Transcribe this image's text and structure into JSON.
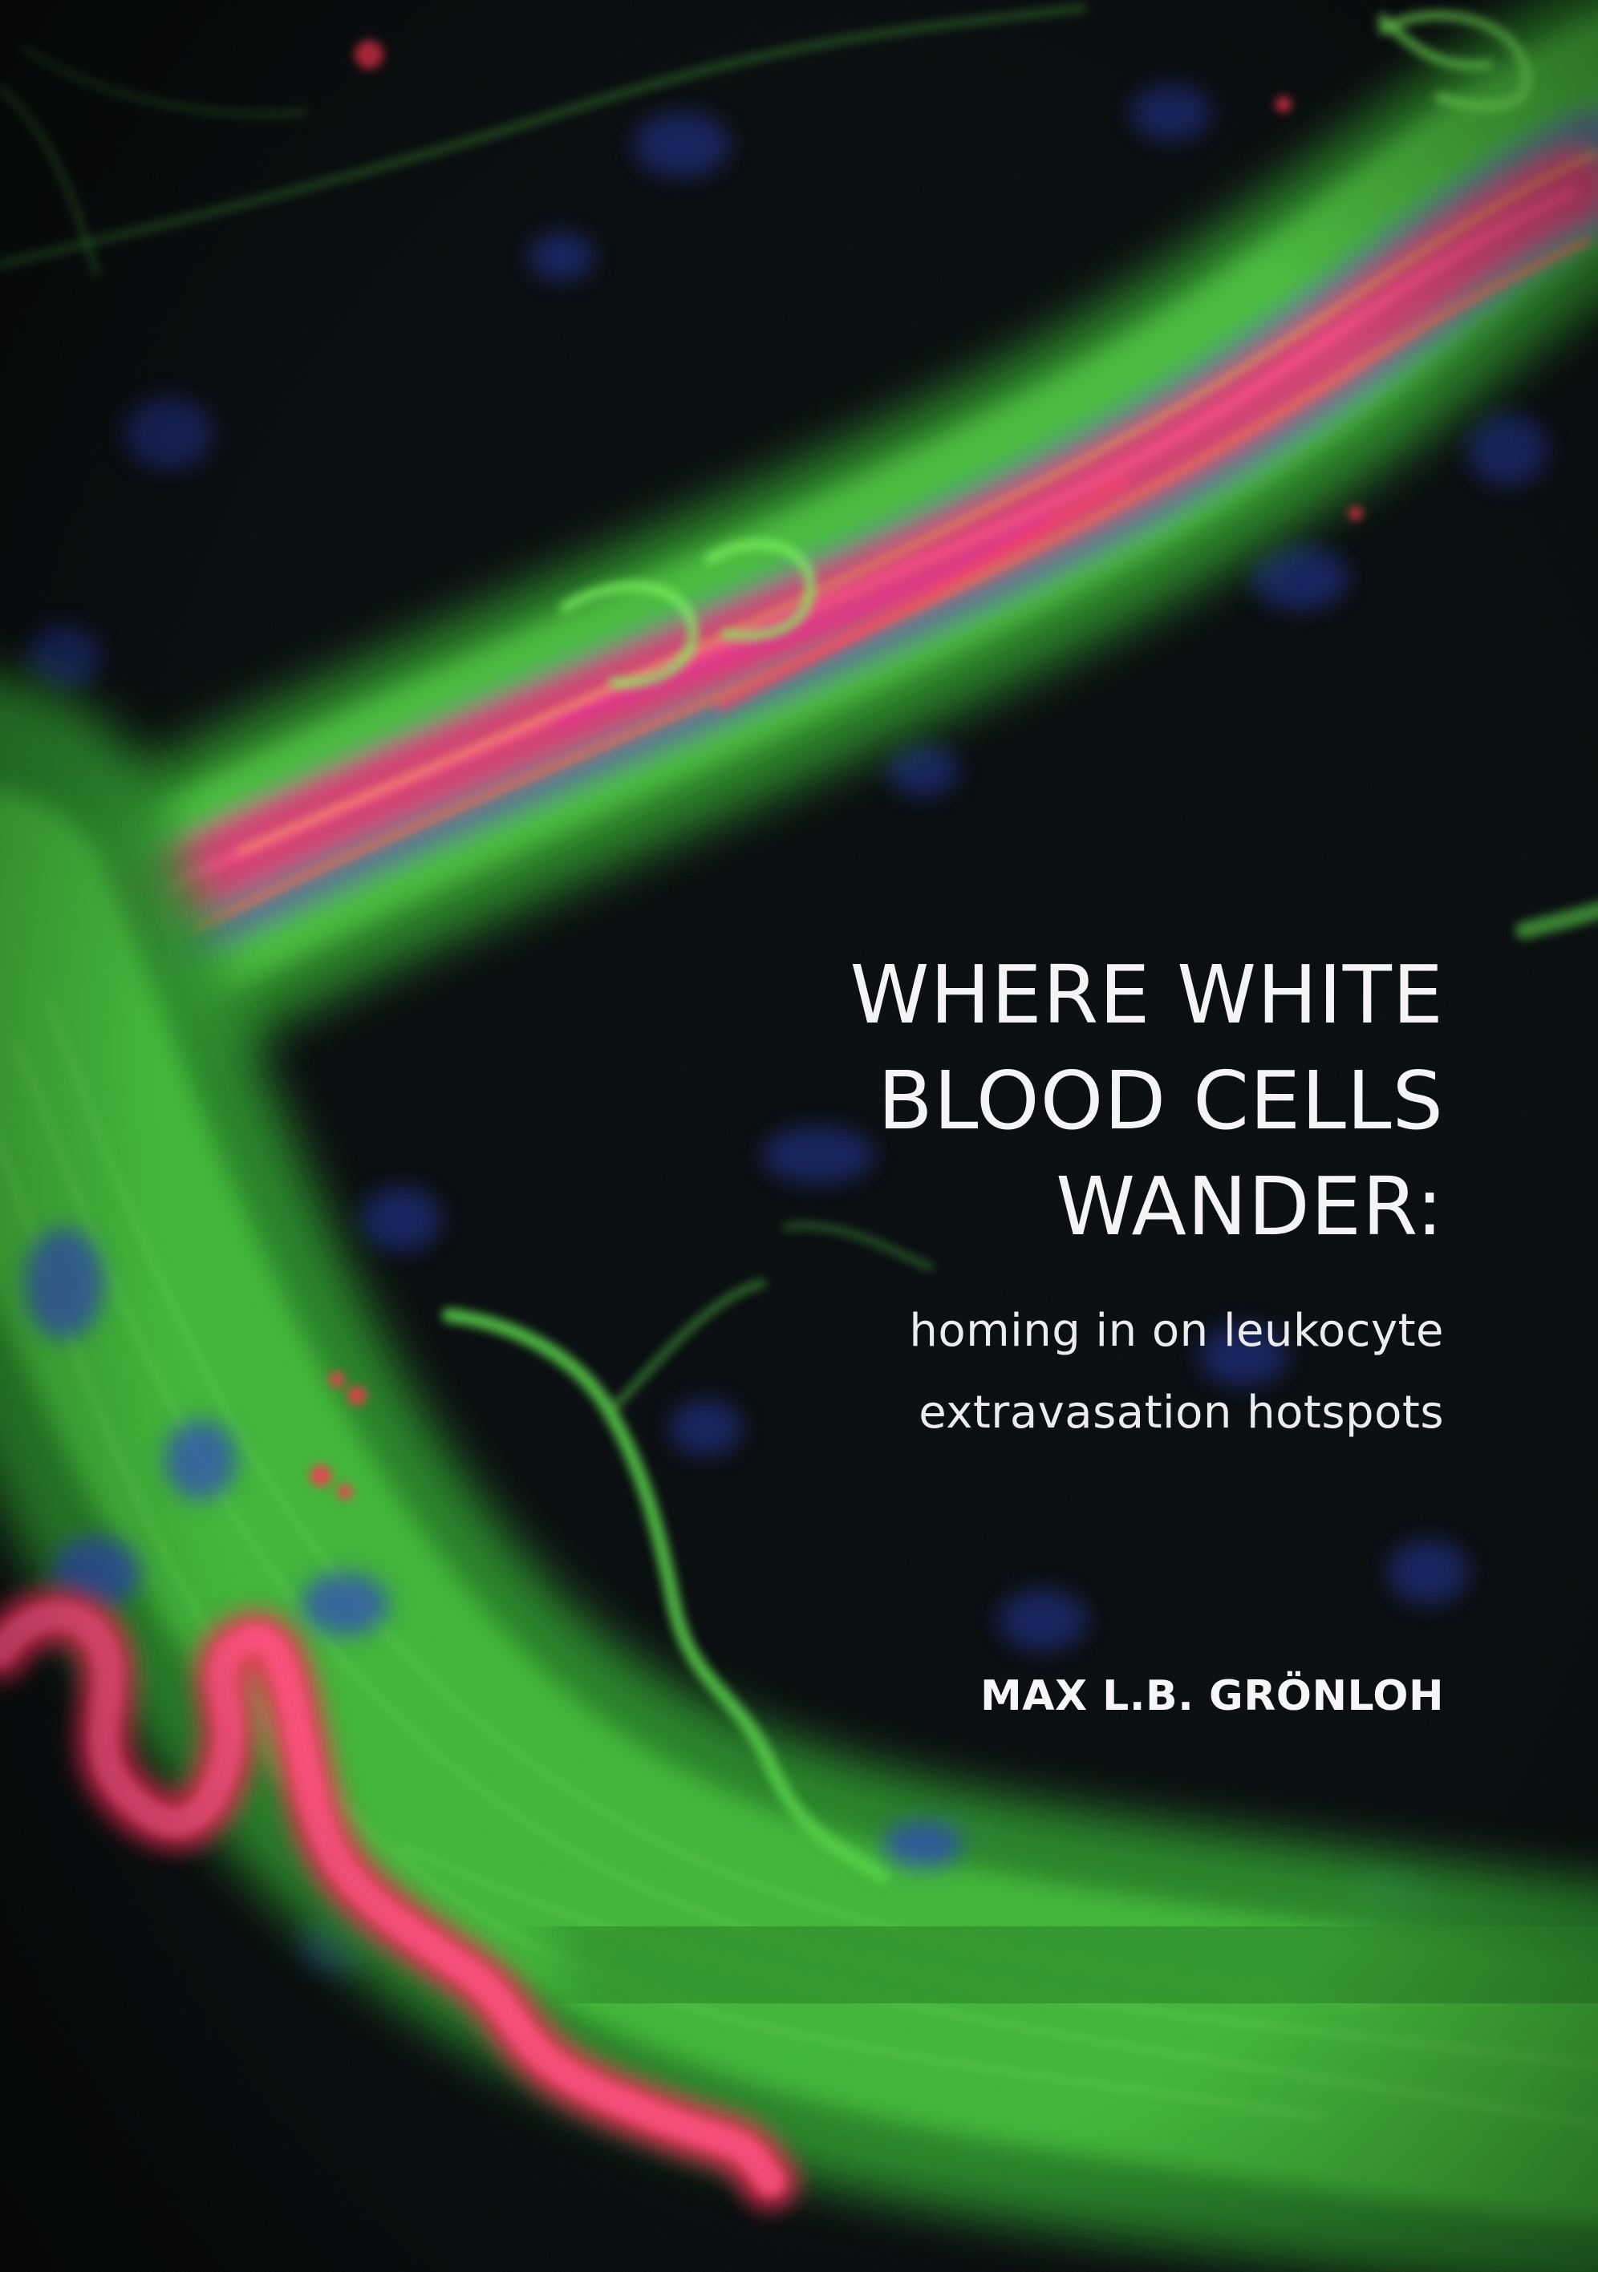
{
  "book": {
    "title_lines": [
      "WHERE WHITE",
      "BLOOD CELLS",
      "WANDER:"
    ],
    "subtitle_lines": [
      "homing in on leukocyte",
      "extravasation hotspots"
    ],
    "author": "MAX L.B. GRÖNLOH"
  },
  "colors": {
    "background": "#07080d",
    "vessel_green": "#49c23c",
    "vessel_red": "#ff2a5a",
    "nuclei_blue": "#2a3aa8",
    "text": "#f4f4f6"
  }
}
